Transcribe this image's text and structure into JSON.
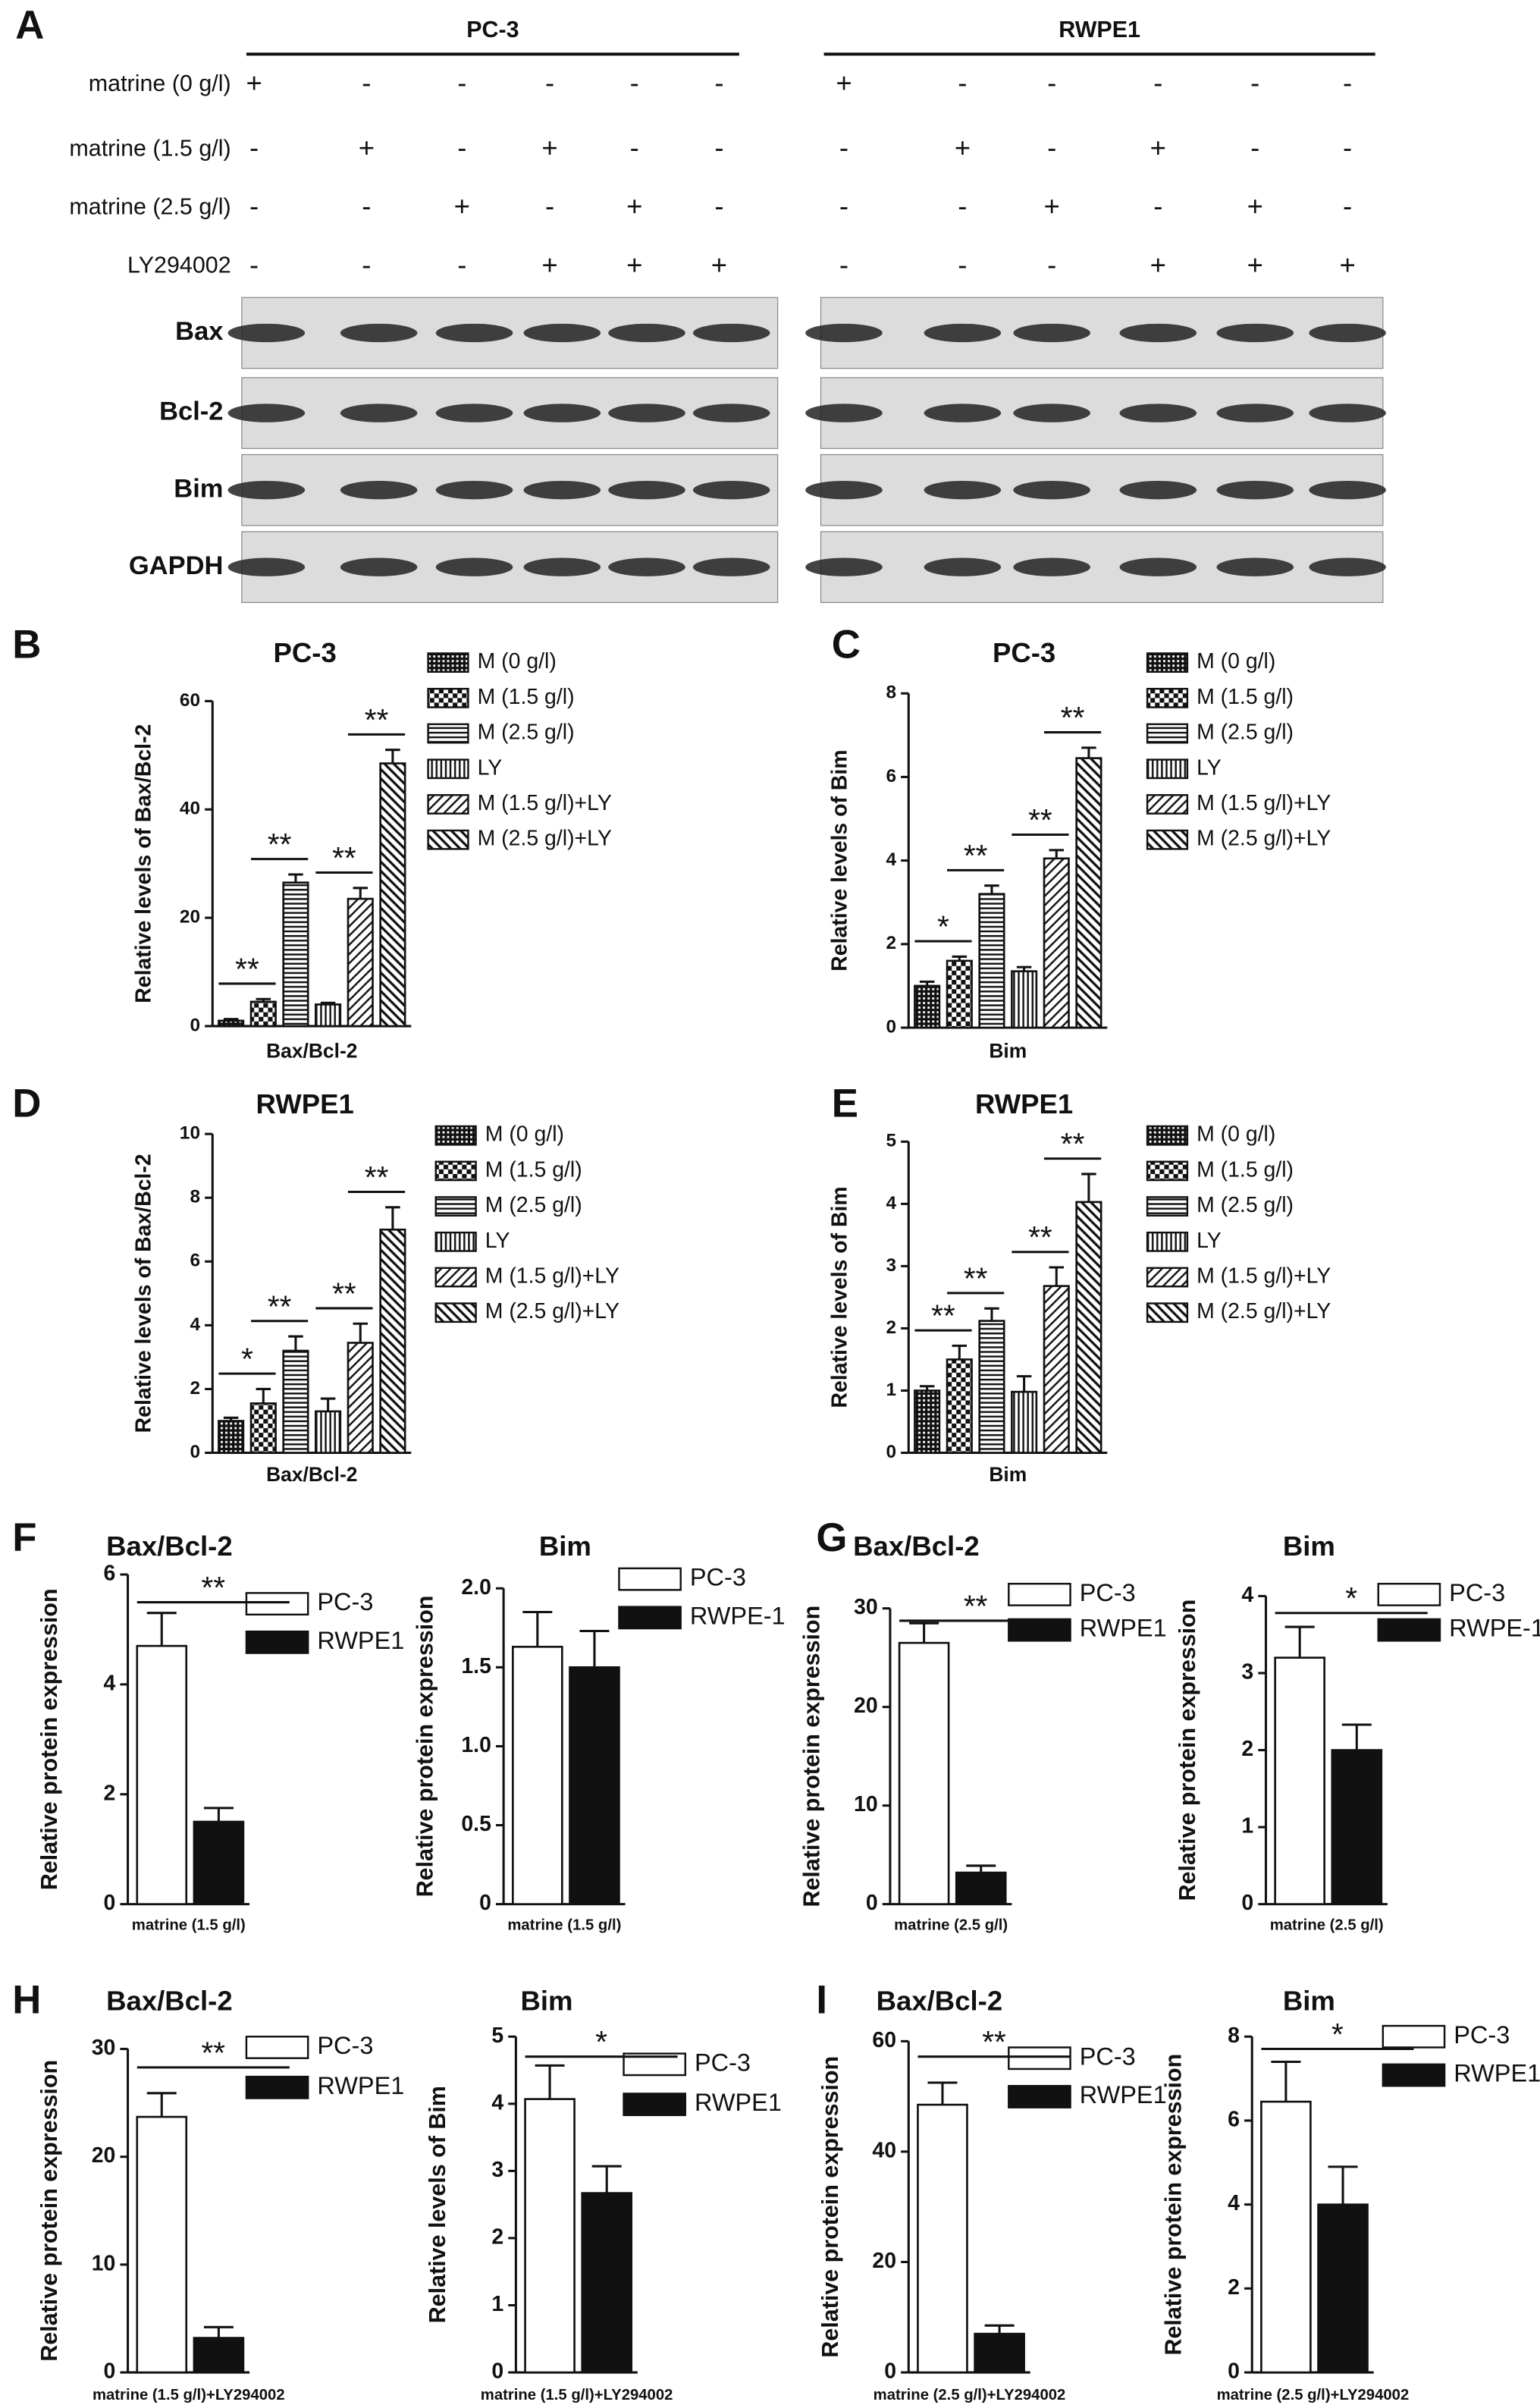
{
  "blot": {
    "panel_label": "A",
    "groups": [
      "PC-3",
      "RWPE1"
    ],
    "treatments": [
      {
        "label": "matrine (0 g/l)",
        "signs": [
          [
            "+",
            "-",
            "-",
            "-",
            "-",
            "-"
          ],
          [
            "+",
            "-",
            "-",
            "-",
            "-",
            "-"
          ]
        ]
      },
      {
        "label": "matrine (1.5 g/l)",
        "signs": [
          [
            "-",
            "+",
            "-",
            "+",
            "-",
            "-"
          ],
          [
            "-",
            "+",
            "-",
            "+",
            "-",
            "-"
          ]
        ]
      },
      {
        "label": "matrine (2.5 g/l)",
        "signs": [
          [
            "-",
            "-",
            "+",
            "-",
            "+",
            "-"
          ],
          [
            "-",
            "-",
            "+",
            "-",
            "+",
            "-"
          ]
        ]
      },
      {
        "label": "LY294002",
        "signs": [
          [
            "-",
            "-",
            "-",
            "+",
            "+",
            "+"
          ],
          [
            "-",
            "-",
            "-",
            "+",
            "+",
            "+"
          ]
        ]
      }
    ],
    "bands": [
      "Bax",
      "Bcl-2",
      "Bim",
      "GAPDH"
    ]
  },
  "chart_data": [
    {
      "type": "bar",
      "panel_label": "B",
      "title": "PC-3",
      "y_label": "Relative levels of Bax/Bcl-2",
      "categories": [
        "Bax/Bcl-2"
      ],
      "series": [
        {
          "name": "M (0 g/l)",
          "color": "#111111",
          "pattern": "grid",
          "values": [
            1
          ],
          "errors": [
            0.3
          ]
        },
        {
          "name": "M (1.5 g/l)",
          "color": "#111111",
          "pattern": "checker",
          "values": [
            4.5
          ],
          "errors": [
            0.5
          ]
        },
        {
          "name": "M (2.5 g/l)",
          "color": "#111111",
          "pattern": "hlines",
          "values": [
            26.5
          ],
          "errors": [
            1.5
          ]
        },
        {
          "name": "LY",
          "color": "#111111",
          "pattern": "vlines",
          "values": [
            4
          ],
          "errors": [
            0.3
          ]
        },
        {
          "name": "M (1.5 g/l)+LY",
          "color": "#111111",
          "pattern": "diag",
          "values": [
            23.5
          ],
          "errors": [
            2
          ]
        },
        {
          "name": "M (2.5 g/l)+LY",
          "color": "#111111",
          "pattern": "rdiag",
          "values": [
            48.5
          ],
          "errors": [
            2.5
          ]
        }
      ],
      "ylim": [
        0,
        60
      ],
      "yticks": [
        0,
        20,
        40,
        60
      ],
      "annotations": [
        {
          "text": "**"
        },
        {
          "text": "**"
        },
        {
          "text": "**"
        },
        {
          "text": "**"
        }
      ]
    },
    {
      "type": "bar",
      "panel_label": "C",
      "title": "PC-3",
      "y_label": "Relative levels of Bim",
      "categories": [
        "Bim"
      ],
      "series": [
        {
          "name": "M (0 g/l)",
          "color": "#111111",
          "pattern": "grid",
          "values": [
            1
          ],
          "errors": [
            0.1
          ]
        },
        {
          "name": "M (1.5 g/l)",
          "color": "#111111",
          "pattern": "checker",
          "values": [
            1.6
          ],
          "errors": [
            0.1
          ]
        },
        {
          "name": "M (2.5 g/l)",
          "color": "#111111",
          "pattern": "hlines",
          "values": [
            3.2
          ],
          "errors": [
            0.2
          ]
        },
        {
          "name": "LY",
          "color": "#111111",
          "pattern": "vlines",
          "values": [
            1.35
          ],
          "errors": [
            0.1
          ]
        },
        {
          "name": "M (1.5 g/l)+LY",
          "color": "#111111",
          "pattern": "diag",
          "values": [
            4.05
          ],
          "errors": [
            0.2
          ]
        },
        {
          "name": "M (2.5 g/l)+LY",
          "color": "#111111",
          "pattern": "rdiag",
          "values": [
            6.45
          ],
          "errors": [
            0.25
          ]
        }
      ],
      "ylim": [
        0,
        8
      ],
      "yticks": [
        0,
        2,
        4,
        6,
        8
      ],
      "annotations": [
        {
          "text": "*"
        },
        {
          "text": "**"
        },
        {
          "text": "**"
        },
        {
          "text": "**"
        }
      ]
    },
    {
      "type": "bar",
      "panel_label": "D",
      "title": "RWPE1",
      "y_label": "Relative levels of Bax/Bcl-2",
      "categories": [
        "Bax/Bcl-2"
      ],
      "series": [
        {
          "name": "M (0 g/l)",
          "color": "#111111",
          "pattern": "grid",
          "values": [
            1
          ],
          "errors": [
            0.1
          ]
        },
        {
          "name": "M (1.5 g/l)",
          "color": "#111111",
          "pattern": "checker",
          "values": [
            1.55
          ],
          "errors": [
            0.45
          ]
        },
        {
          "name": "M (2.5 g/l)",
          "color": "#111111",
          "pattern": "hlines",
          "values": [
            3.2
          ],
          "errors": [
            0.45
          ]
        },
        {
          "name": "LY",
          "color": "#111111",
          "pattern": "vlines",
          "values": [
            1.3
          ],
          "errors": [
            0.4
          ]
        },
        {
          "name": "M (1.5 g/l)+LY",
          "color": "#111111",
          "pattern": "diag",
          "values": [
            3.45
          ],
          "errors": [
            0.6
          ]
        },
        {
          "name": "M (2.5 g/l)+LY",
          "color": "#111111",
          "pattern": "rdiag",
          "values": [
            7
          ],
          "errors": [
            0.7
          ]
        }
      ],
      "ylim": [
        0,
        10
      ],
      "yticks": [
        0,
        2,
        4,
        6,
        8,
        10
      ],
      "annotations": [
        {
          "text": "*"
        },
        {
          "text": "**"
        },
        {
          "text": "**"
        },
        {
          "text": "**"
        }
      ]
    },
    {
      "type": "bar",
      "panel_label": "E",
      "title": "RWPE1",
      "y_label": "Relative levels of Bim",
      "categories": [
        "Bim"
      ],
      "series": [
        {
          "name": "M (0 g/l)",
          "color": "#111111",
          "pattern": "grid",
          "values": [
            1
          ],
          "errors": [
            0.07
          ]
        },
        {
          "name": "M (1.5 g/l)",
          "color": "#111111",
          "pattern": "checker",
          "values": [
            1.5
          ],
          "errors": [
            0.22
          ]
        },
        {
          "name": "M (2.5 g/l)",
          "color": "#111111",
          "pattern": "hlines",
          "values": [
            2.12
          ],
          "errors": [
            0.2
          ]
        },
        {
          "name": "LY",
          "color": "#111111",
          "pattern": "vlines",
          "values": [
            0.98
          ],
          "errors": [
            0.25
          ]
        },
        {
          "name": "M (1.5 g/l)+LY",
          "color": "#111111",
          "pattern": "diag",
          "values": [
            2.68
          ],
          "errors": [
            0.3
          ]
        },
        {
          "name": "M (2.5 g/l)+LY",
          "color": "#111111",
          "pattern": "rdiag",
          "values": [
            4.03
          ],
          "errors": [
            0.45
          ]
        }
      ],
      "ylim": [
        0,
        5
      ],
      "yticks": [
        0,
        1,
        2,
        3,
        4,
        5
      ],
      "annotations": [
        {
          "text": "**"
        },
        {
          "text": "**"
        },
        {
          "text": "**"
        },
        {
          "text": "**"
        }
      ]
    },
    {
      "type": "bar",
      "panel_label": "F",
      "title": "Bax/Bcl-2",
      "y_label": "Relative protein expression",
      "categories": [
        "matrine (1.5 g/l)"
      ],
      "series": [
        {
          "name": "PC-3",
          "color": "#ffffff",
          "values": [
            4.7
          ],
          "errors": [
            0.6
          ]
        },
        {
          "name": "RWPE1",
          "color": "#111111",
          "values": [
            1.5
          ],
          "errors": [
            0.25
          ]
        }
      ],
      "ylim": [
        0,
        6
      ],
      "yticks": [
        0,
        2,
        4,
        6
      ],
      "annotations": [
        {
          "text": "**"
        }
      ]
    },
    {
      "type": "bar",
      "title": "Bim",
      "y_label": "Relative protein expression",
      "categories": [
        "matrine (1.5 g/l)"
      ],
      "series": [
        {
          "name": "PC-3",
          "color": "#ffffff",
          "values": [
            1.63
          ],
          "errors": [
            0.22
          ]
        },
        {
          "name": "RWPE-1",
          "color": "#111111",
          "values": [
            1.5
          ],
          "errors": [
            0.23
          ]
        }
      ],
      "ylim": [
        0,
        2
      ],
      "yticks": [
        0,
        0.5,
        {
          "value": 1,
          "label": "1.0"
        },
        1.5,
        {
          "value": 2,
          "label": "2.0"
        }
      ],
      "annotations": []
    },
    {
      "type": "bar",
      "panel_label": "G",
      "title": "Bax/Bcl-2",
      "y_label": "Relative protein expression",
      "categories": [
        "matrine (2.5 g/l)"
      ],
      "series": [
        {
          "name": "PC-3",
          "color": "#ffffff",
          "values": [
            26.5
          ],
          "errors": [
            2
          ]
        },
        {
          "name": "RWPE1",
          "color": "#111111",
          "values": [
            3.2
          ],
          "errors": [
            0.7
          ]
        }
      ],
      "ylim": [
        0,
        30
      ],
      "yticks": [
        0,
        10,
        20,
        30
      ],
      "annotations": [
        {
          "text": "**"
        }
      ]
    },
    {
      "type": "bar",
      "title": "Bim",
      "y_label": "Relative protein expression",
      "categories": [
        "matrine (2.5 g/l)"
      ],
      "series": [
        {
          "name": "PC-3",
          "color": "#ffffff",
          "values": [
            3.2
          ],
          "errors": [
            0.4
          ]
        },
        {
          "name": "RWPE-1",
          "color": "#111111",
          "values": [
            2
          ],
          "errors": [
            0.33
          ]
        }
      ],
      "ylim": [
        0,
        4
      ],
      "yticks": [
        0,
        1,
        2,
        3,
        4
      ],
      "annotations": [
        {
          "text": "*"
        }
      ]
    },
    {
      "type": "bar",
      "panel_label": "H",
      "title": "Bax/Bcl-2",
      "y_label": "Relative protein expression",
      "categories": [
        "matrine (1.5 g/l)+LY294002"
      ],
      "series": [
        {
          "name": "PC-3",
          "color": "#ffffff",
          "values": [
            23.7
          ],
          "errors": [
            2.2
          ]
        },
        {
          "name": "RWPE1",
          "color": "#111111",
          "values": [
            3.2
          ],
          "errors": [
            1
          ]
        }
      ],
      "ylim": [
        0,
        30
      ],
      "yticks": [
        0,
        10,
        20,
        30
      ],
      "annotations": [
        {
          "text": "**"
        }
      ]
    },
    {
      "type": "bar",
      "title": "Bim",
      "y_label": "Relative levels of Bim",
      "categories": [
        "matrine (1.5 g/l)+LY294002"
      ],
      "series": [
        {
          "name": "PC-3",
          "color": "#ffffff",
          "values": [
            4.07
          ],
          "errors": [
            0.5
          ]
        },
        {
          "name": "RWPE1",
          "color": "#111111",
          "values": [
            2.67
          ],
          "errors": [
            0.4
          ]
        }
      ],
      "ylim": [
        0,
        5
      ],
      "yticks": [
        0,
        1,
        2,
        3,
        4,
        5
      ],
      "annotations": [
        {
          "text": "*"
        }
      ]
    },
    {
      "type": "bar",
      "panel_label": "I",
      "title": "Bax/Bcl-2",
      "y_label": "Relative protein expression",
      "categories": [
        "matrine (2.5 g/l)+LY294002"
      ],
      "series": [
        {
          "name": "PC-3",
          "color": "#ffffff",
          "values": [
            48.5
          ],
          "errors": [
            4
          ]
        },
        {
          "name": "RWPE1",
          "color": "#111111",
          "values": [
            7
          ],
          "errors": [
            1.5
          ]
        }
      ],
      "ylim": [
        0,
        60
      ],
      "yticks": [
        0,
        20,
        40,
        60
      ],
      "annotations": [
        {
          "text": "**"
        }
      ]
    },
    {
      "type": "bar",
      "title": "Bim",
      "y_label": "Relative protein expression",
      "categories": [
        "matrine (2.5 g/l)+LY294002"
      ],
      "series": [
        {
          "name": "PC-3",
          "color": "#ffffff",
          "values": [
            6.45
          ],
          "errors": [
            0.95
          ]
        },
        {
          "name": "RWPE1",
          "color": "#111111",
          "values": [
            4
          ],
          "errors": [
            0.9
          ]
        }
      ],
      "ylim": [
        0,
        8
      ],
      "yticks": [
        0,
        2,
        4,
        6,
        8
      ],
      "annotations": [
        {
          "text": "*"
        }
      ]
    }
  ]
}
